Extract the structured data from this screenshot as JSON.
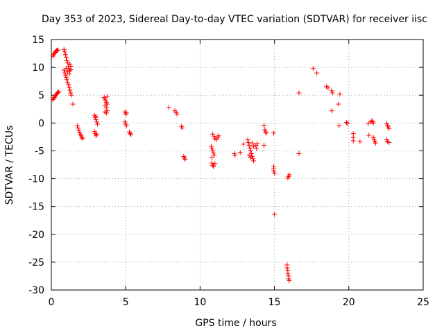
{
  "chart_data": {
    "type": "scatter",
    "title": "Day 353 of 2023, Sidereal Day-to-day VTEC variation (SDTVAR) for receiver iisc",
    "xlabel": "GPS time / hours",
    "ylabel": "SDTVAR / TECUs",
    "xlim": [
      0,
      25
    ],
    "ylim": [
      -30,
      15
    ],
    "x_ticks": [
      0,
      5,
      10,
      15,
      20,
      25
    ],
    "y_ticks": [
      15,
      10,
      5,
      0,
      -5,
      -10,
      -15,
      -20,
      -25,
      -30
    ],
    "x_tick_labels": [
      "0",
      "5",
      "10",
      "15",
      "20",
      "25"
    ],
    "y_tick_labels": [
      "15",
      "10",
      "5",
      "0",
      "-5",
      "-10",
      "-15",
      "-20",
      "-25",
      "-30"
    ],
    "grid": true,
    "marker": "+",
    "color": "#ff0000",
    "series": [
      {
        "name": "SDTVAR",
        "points": [
          [
            0.1,
            12.0
          ],
          [
            0.15,
            12.3
          ],
          [
            0.2,
            12.5
          ],
          [
            0.25,
            12.7
          ],
          [
            0.3,
            12.9
          ],
          [
            0.35,
            13.0
          ],
          [
            0.4,
            13.1
          ],
          [
            0.45,
            13.1
          ],
          [
            0.1,
            4.2
          ],
          [
            0.15,
            4.4
          ],
          [
            0.2,
            4.6
          ],
          [
            0.25,
            4.8
          ],
          [
            0.3,
            5.0
          ],
          [
            0.35,
            5.2
          ],
          [
            0.4,
            5.4
          ],
          [
            0.45,
            5.5
          ],
          [
            0.5,
            5.6
          ],
          [
            0.85,
            13.2
          ],
          [
            0.9,
            12.8
          ],
          [
            0.95,
            12.3
          ],
          [
            1.0,
            11.8
          ],
          [
            1.05,
            11.2
          ],
          [
            1.1,
            10.8
          ],
          [
            1.15,
            10.2
          ],
          [
            1.2,
            9.8
          ],
          [
            1.25,
            9.4
          ],
          [
            0.85,
            9.5
          ],
          [
            0.9,
            9.0
          ],
          [
            0.95,
            8.6
          ],
          [
            1.0,
            8.2
          ],
          [
            1.05,
            7.8
          ],
          [
            1.1,
            7.3
          ],
          [
            1.15,
            6.9
          ],
          [
            1.2,
            6.4
          ],
          [
            1.25,
            5.9
          ],
          [
            1.3,
            5.4
          ],
          [
            1.35,
            5.0
          ],
          [
            1.0,
            9.8
          ],
          [
            1.1,
            9.2
          ],
          [
            1.2,
            8.8
          ],
          [
            1.3,
            9.6
          ],
          [
            1.3,
            10.2
          ],
          [
            1.25,
            10.6
          ],
          [
            1.45,
            3.4
          ],
          [
            1.75,
            -0.5
          ],
          [
            1.8,
            -0.9
          ],
          [
            1.85,
            -1.3
          ],
          [
            1.9,
            -1.7
          ],
          [
            1.95,
            -2.0
          ],
          [
            2.0,
            -2.3
          ],
          [
            2.05,
            -2.6
          ],
          [
            2.1,
            -2.8
          ],
          [
            2.9,
            1.4
          ],
          [
            2.95,
            1.0
          ],
          [
            3.0,
            0.6
          ],
          [
            3.05,
            0.2
          ],
          [
            3.1,
            -0.2
          ],
          [
            3.0,
            1.2
          ],
          [
            2.9,
            -1.5
          ],
          [
            2.95,
            -1.9
          ],
          [
            3.0,
            -2.3
          ],
          [
            3.05,
            -2.0
          ],
          [
            3.55,
            4.6
          ],
          [
            3.6,
            4.3
          ],
          [
            3.65,
            4.0
          ],
          [
            3.7,
            3.7
          ],
          [
            3.75,
            3.4
          ],
          [
            3.6,
            3.1
          ],
          [
            3.7,
            2.8
          ],
          [
            3.75,
            4.8
          ],
          [
            3.6,
            2.0
          ],
          [
            3.7,
            1.8
          ],
          [
            3.75,
            2.2
          ],
          [
            4.95,
            2.0
          ],
          [
            5.0,
            1.6
          ],
          [
            5.05,
            1.8
          ],
          [
            4.95,
            0.2
          ],
          [
            5.0,
            -0.2
          ],
          [
            5.05,
            -0.5
          ],
          [
            5.25,
            -1.6
          ],
          [
            5.3,
            -1.9
          ],
          [
            5.35,
            -2.1
          ],
          [
            7.9,
            2.8
          ],
          [
            8.3,
            2.2
          ],
          [
            8.4,
            1.9
          ],
          [
            8.45,
            1.6
          ],
          [
            8.75,
            -0.6
          ],
          [
            8.8,
            -0.9
          ],
          [
            8.9,
            -6.0
          ],
          [
            8.95,
            -6.3
          ],
          [
            9.0,
            -6.5
          ],
          [
            10.75,
            -4.2
          ],
          [
            10.8,
            -4.6
          ],
          [
            10.85,
            -5.0
          ],
          [
            10.9,
            -5.4
          ],
          [
            10.95,
            -5.8
          ],
          [
            10.8,
            -6.2
          ],
          [
            10.8,
            -7.2
          ],
          [
            10.85,
            -7.6
          ],
          [
            10.9,
            -7.8
          ],
          [
            11.0,
            -7.3
          ],
          [
            10.85,
            -2.0
          ],
          [
            10.95,
            -2.4
          ],
          [
            11.0,
            -2.8
          ],
          [
            11.1,
            -3.0
          ],
          [
            11.2,
            -2.6
          ],
          [
            11.25,
            -2.3
          ],
          [
            12.3,
            -5.5
          ],
          [
            12.35,
            -5.8
          ],
          [
            12.7,
            -5.3
          ],
          [
            12.9,
            -3.8
          ],
          [
            13.2,
            -3.0
          ],
          [
            13.25,
            -3.5
          ],
          [
            13.3,
            -4.0
          ],
          [
            13.35,
            -4.5
          ],
          [
            13.4,
            -5.0
          ],
          [
            13.45,
            -5.5
          ],
          [
            13.5,
            -6.0
          ],
          [
            13.55,
            -6.4
          ],
          [
            13.6,
            -6.8
          ],
          [
            13.3,
            -5.8
          ],
          [
            13.4,
            -6.2
          ],
          [
            13.5,
            -3.6
          ],
          [
            13.6,
            -4.2
          ],
          [
            13.75,
            -4.0
          ],
          [
            13.8,
            -4.6
          ],
          [
            13.85,
            -3.7
          ],
          [
            14.3,
            -0.4
          ],
          [
            14.35,
            -1.2
          ],
          [
            14.4,
            -1.6
          ],
          [
            14.45,
            -1.8
          ],
          [
            14.3,
            -4.0
          ],
          [
            14.95,
            -7.8
          ],
          [
            14.95,
            -8.2
          ],
          [
            14.95,
            -8.6
          ],
          [
            15.0,
            -9.0
          ],
          [
            14.95,
            -1.8
          ],
          [
            15.0,
            -16.4
          ],
          [
            15.85,
            -25.5
          ],
          [
            15.85,
            -26.0
          ],
          [
            15.9,
            -26.5
          ],
          [
            15.9,
            -27.0
          ],
          [
            15.95,
            -27.5
          ],
          [
            15.95,
            -28.0
          ],
          [
            16.0,
            -28.3
          ],
          [
            15.9,
            -9.9
          ],
          [
            15.95,
            -9.6
          ],
          [
            16.0,
            -9.3
          ],
          [
            16.65,
            5.4
          ],
          [
            16.65,
            -5.5
          ],
          [
            17.6,
            9.8
          ],
          [
            17.85,
            9.0
          ],
          [
            18.5,
            6.6
          ],
          [
            18.6,
            6.3
          ],
          [
            18.85,
            5.8
          ],
          [
            18.9,
            5.4
          ],
          [
            18.85,
            2.2
          ],
          [
            19.3,
            3.4
          ],
          [
            19.4,
            5.2
          ],
          [
            19.35,
            -0.5
          ],
          [
            19.85,
            0.1
          ],
          [
            19.9,
            -0.1
          ],
          [
            20.3,
            -1.9
          ],
          [
            20.3,
            -2.6
          ],
          [
            20.3,
            -3.2
          ],
          [
            20.75,
            -3.3
          ],
          [
            21.3,
            -0.1
          ],
          [
            21.35,
            -2.2
          ],
          [
            21.45,
            0.2
          ],
          [
            21.55,
            0.4
          ],
          [
            21.6,
            0.2
          ],
          [
            21.65,
            0.0
          ],
          [
            21.65,
            -2.6
          ],
          [
            21.7,
            -3.0
          ],
          [
            21.75,
            -3.3
          ],
          [
            21.8,
            -3.6
          ],
          [
            22.55,
            -0.1
          ],
          [
            22.6,
            -0.4
          ],
          [
            22.65,
            -0.7
          ],
          [
            22.7,
            -1.0
          ],
          [
            22.55,
            -3.0
          ],
          [
            22.6,
            -3.3
          ],
          [
            22.7,
            -3.5
          ]
        ]
      }
    ]
  }
}
